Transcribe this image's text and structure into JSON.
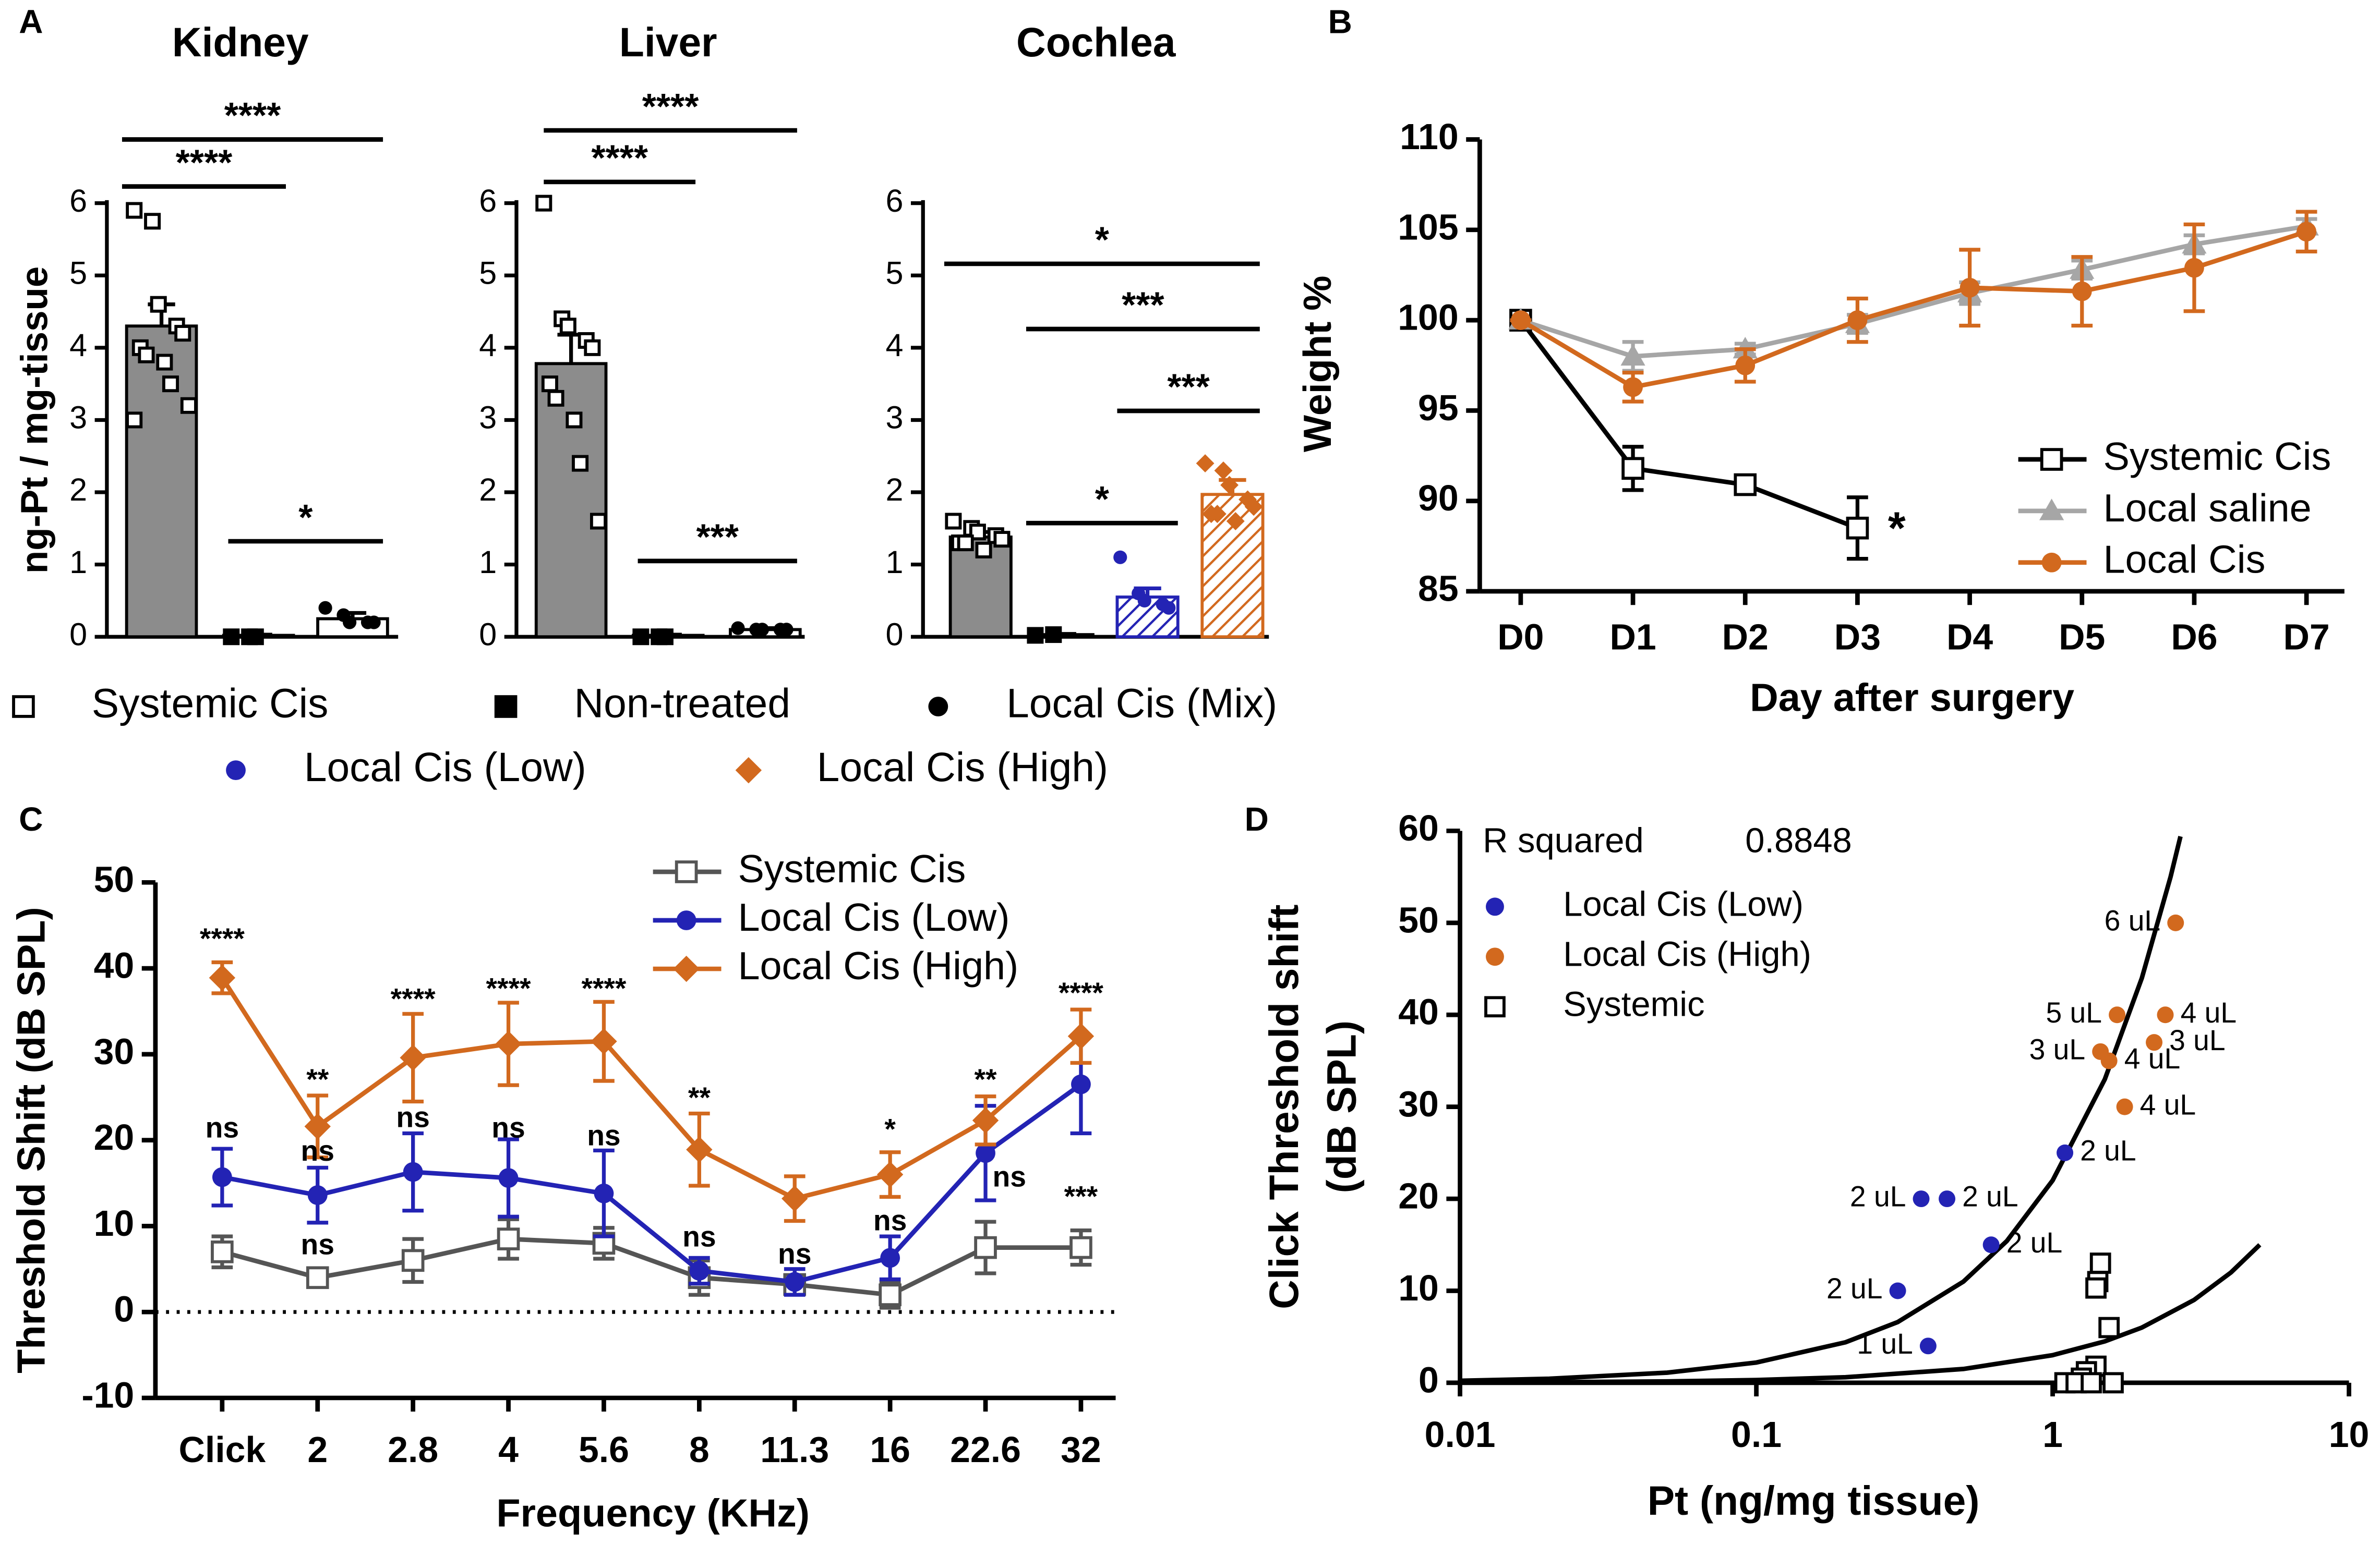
{
  "panel_labels": [
    "A",
    "B",
    "C",
    "D"
  ],
  "legend_a": [
    {
      "name": "Systemic Cis",
      "marker": "open-square",
      "color": "#000000"
    },
    {
      "name": "Non-treated",
      "marker": "square",
      "color": "#000000"
    },
    {
      "name": "Local Cis (Mix)",
      "marker": "circle",
      "color": "#000000"
    },
    {
      "name": "Local Cis (Low)",
      "marker": "circle",
      "color": "#2323b4"
    },
    {
      "name": "Local Cis (High)",
      "marker": "diamond",
      "color": "#d2691e"
    }
  ],
  "chart_data": [
    {
      "type": "bar",
      "title": "Kidney",
      "ylabel": "ng-Pt / mg-tissue",
      "categories": [
        null,
        null,
        null
      ],
      "values": [
        4.3,
        0.02,
        0.25
      ],
      "errors": [
        0.3,
        0.01,
        0.08
      ],
      "fills": [
        "#8c8c8c",
        "#000000",
        "#ffffff"
      ],
      "points": [
        [
          5.9,
          5.75,
          4.6,
          4.3,
          4.2,
          4.0,
          3.9,
          3.8,
          3.5,
          3.2,
          3.0
        ],
        [
          0,
          0,
          0
        ],
        [
          0.4,
          0.3,
          0.2,
          0.2,
          0.2
        ]
      ],
      "point_markers": [
        "open-square",
        "square",
        "circle"
      ],
      "point_colors": [
        "#000000",
        "#000000",
        "#000000"
      ],
      "ylim": [
        0,
        6
      ],
      "yticks": [
        0,
        1,
        2,
        3,
        4,
        5,
        6
      ],
      "significance": [
        "****",
        "****",
        "*"
      ]
    },
    {
      "type": "bar",
      "title": "Liver",
      "categories": [
        null,
        null,
        null
      ],
      "values": [
        3.78,
        0.02,
        0.1
      ],
      "errors": [
        0.4,
        0.01,
        0.02
      ],
      "fills": [
        "#8c8c8c",
        "#000000",
        "#ffffff"
      ],
      "points": [
        [
          6.0,
          4.4,
          4.3,
          4.1,
          4.0,
          3.5,
          3.3,
          3.0,
          2.4,
          1.6
        ],
        [
          0,
          0,
          0
        ],
        [
          0.12,
          0.1,
          0.1,
          0.1,
          0.1
        ]
      ],
      "point_markers": [
        "open-square",
        "square",
        "circle"
      ],
      "point_colors": [
        "#000000",
        "#000000",
        "#000000"
      ],
      "ylim": [
        0,
        6
      ],
      "yticks": [
        0,
        1,
        2,
        3,
        4,
        5,
        6
      ],
      "significance": [
        "****",
        "****",
        "***"
      ]
    },
    {
      "type": "bar",
      "title": "Cochlea",
      "categories": [
        null,
        null,
        null,
        null
      ],
      "values": [
        1.38,
        0.03,
        0.55,
        1.97
      ],
      "errors": [
        0.07,
        0.01,
        0.12,
        0.2
      ],
      "fills": [
        "#8c8c8c",
        "#000000",
        "#2323b4",
        "#d2691e"
      ],
      "hatch": [
        false,
        false,
        true,
        true
      ],
      "points": [
        [
          1.6,
          1.5,
          1.45,
          1.4,
          1.35,
          1.3,
          1.3,
          1.2
        ],
        [
          0.02,
          0.03
        ],
        [
          1.1,
          0.6,
          0.5,
          0.45,
          0.4
        ],
        [
          2.4,
          2.3,
          2.1,
          1.9,
          1.8,
          1.7,
          1.7,
          1.6
        ]
      ],
      "point_markers": [
        "open-square",
        "square",
        "circle",
        "diamond"
      ],
      "point_colors": [
        "#000000",
        "#000000",
        "#2323b4",
        "#d2691e"
      ],
      "ylim": [
        0,
        6
      ],
      "yticks": [
        0,
        1,
        2,
        3,
        4,
        5,
        6
      ],
      "significance": [
        "*",
        "***",
        "***",
        "*"
      ]
    },
    {
      "type": "line",
      "xlabel": "Day after surgery",
      "ylabel": "Weight %",
      "categories": [
        "D0",
        "D1",
        "D2",
        "D3",
        "D4",
        "D5",
        "D6",
        "D7"
      ],
      "ylim": [
        85,
        110
      ],
      "yticks": [
        85,
        90,
        95,
        100,
        105,
        110
      ],
      "legend": "lower right",
      "series": [
        {
          "name": "Systemic Cis",
          "color": "#000000",
          "marker": "open-square",
          "values": [
            100,
            91.8,
            90.9,
            88.5,
            null,
            null,
            null,
            null
          ],
          "errors": [
            0,
            1.2,
            0.3,
            1.7,
            null,
            null,
            null,
            null
          ]
        },
        {
          "name": "Local saline",
          "color": "#a6a6a6",
          "marker": "triangle",
          "values": [
            100,
            98,
            98.4,
            99.8,
            101.5,
            102.8,
            104.2,
            105.2
          ],
          "errors": [
            0,
            0.8,
            0.3,
            0.5,
            0.6,
            0.5,
            0.5,
            0.4
          ]
        },
        {
          "name": "Local Cis",
          "color": "#d2691e",
          "marker": "circle",
          "values": [
            100,
            96.3,
            97.5,
            100,
            101.8,
            101.6,
            102.9,
            104.9
          ],
          "errors": [
            0,
            0.8,
            0.9,
            1.2,
            2.1,
            1.9,
            2.4,
            1.1
          ]
        }
      ],
      "annotations": [
        "*"
      ]
    },
    {
      "type": "line",
      "xlabel": "Frequency (KHz)",
      "ylabel": "Threshold Shift (dB SPL)",
      "categories": [
        "Click",
        "2",
        "2.8",
        "4",
        "5.6",
        "8",
        "11.3",
        "16",
        "22.6",
        "32"
      ],
      "ylim": [
        -10,
        50
      ],
      "yticks": [
        -10,
        0,
        10,
        20,
        30,
        40,
        50
      ],
      "legend": "upper center",
      "reference_line": 0,
      "series": [
        {
          "name": "Systemic Cis",
          "color": "#555555",
          "marker": "open-square",
          "values": [
            7,
            4,
            6,
            8.5,
            8,
            4,
            3.2,
            2,
            7.5,
            7.5
          ],
          "errors": [
            1.8,
            0.8,
            2.5,
            2.3,
            1.8,
            2,
            1,
            1.5,
            3,
            2
          ]
        },
        {
          "name": "Local Cis (Low)",
          "color": "#2323b4",
          "marker": "circle",
          "values": [
            15.7,
            13.6,
            16.3,
            15.6,
            13.8,
            4.8,
            3.5,
            6.3,
            18.5,
            26.5
          ],
          "errors": [
            3.3,
            3.2,
            4.5,
            4.5,
            5,
            1.5,
            1.5,
            2.5,
            5.5,
            5.7
          ]
        },
        {
          "name": "Local Cis (High)",
          "color": "#d2691e",
          "marker": "diamond",
          "values": [
            38.9,
            21.6,
            29.6,
            31.2,
            31.5,
            18.9,
            13.2,
            16,
            22.3,
            32.1
          ],
          "errors": [
            1.8,
            3.6,
            5.1,
            4.8,
            4.6,
            4.2,
            2.6,
            2.6,
            2.8,
            3.1
          ]
        }
      ],
      "annotations": [
        "****",
        "ns",
        "**",
        "ns",
        "ns",
        "****",
        "ns",
        "****",
        "ns",
        "****",
        "ns",
        "**",
        "ns",
        "ns",
        "*",
        "ns",
        "**",
        "ns",
        "****",
        "***"
      ]
    },
    {
      "type": "scatter",
      "xlabel": "Pt (ng/mg tissue)",
      "ylabel": [
        "Click Threshold shift",
        "(dB SPL)"
      ],
      "xscale": "log",
      "xlim": [
        0.01,
        10
      ],
      "xticks": [
        0.01,
        0.1,
        1,
        10
      ],
      "ylim": [
        0,
        60
      ],
      "yticks": [
        0,
        10,
        20,
        30,
        40,
        50,
        60
      ],
      "legend": "upper left",
      "r_squared_label": "R squared",
      "r_squared": 0.8848,
      "series": [
        {
          "name": "Local Cis (Low)",
          "color": "#2323b4",
          "marker": "circle",
          "x": [
            0.3,
            0.36,
            0.44,
            0.62,
            0.38,
            1.1
          ],
          "values": [
            10,
            20,
            20,
            15,
            4,
            25
          ],
          "labels": [
            "2 uL",
            "2 uL",
            "2 uL",
            "2 uL",
            "1 uL",
            "2 uL"
          ]
        },
        {
          "name": "Local Cis (High)",
          "color": "#d2691e",
          "marker": "circle",
          "x": [
            2.6,
            1.65,
            2.4,
            1.45,
            2.2,
            1.55,
            1.75
          ],
          "values": [
            50,
            40,
            40,
            36,
            37,
            35,
            30
          ],
          "labels": [
            "6 uL",
            "5 uL",
            "4 uL",
            "3 uL",
            "3 uL",
            "4 uL",
            "4 uL"
          ]
        },
        {
          "name": "Systemic",
          "color": "#000000",
          "marker": "open-square",
          "x": [
            1.45,
            1.42,
            1.4,
            1.55,
            1.4,
            1.3,
            1.25,
            1.1,
            1.2,
            1.35,
            1.6
          ],
          "values": [
            13,
            11,
            10.3,
            6,
            1.8,
            1.2,
            0.5,
            0,
            0,
            0,
            0
          ]
        }
      ],
      "fits": [
        {
          "color": "#000000",
          "x": [
            0.01,
            0.02,
            0.05,
            0.1,
            0.2,
            0.3,
            0.5,
            0.7,
            1,
            1.5,
            2,
            2.5,
            2.7
          ],
          "values": [
            0.22,
            0.44,
            1.1,
            2.2,
            4.4,
            6.6,
            11,
            15.4,
            22,
            33,
            44,
            55,
            59.4
          ]
        },
        {
          "color": "#000000",
          "x": [
            0.01,
            0.02,
            0.05,
            0.1,
            0.2,
            0.5,
            1,
            1.5,
            2,
            3,
            4,
            5
          ],
          "values": [
            0.03,
            0.06,
            0.15,
            0.3,
            0.6,
            1.5,
            3,
            4.5,
            6,
            9,
            12,
            15
          ]
        }
      ]
    }
  ]
}
